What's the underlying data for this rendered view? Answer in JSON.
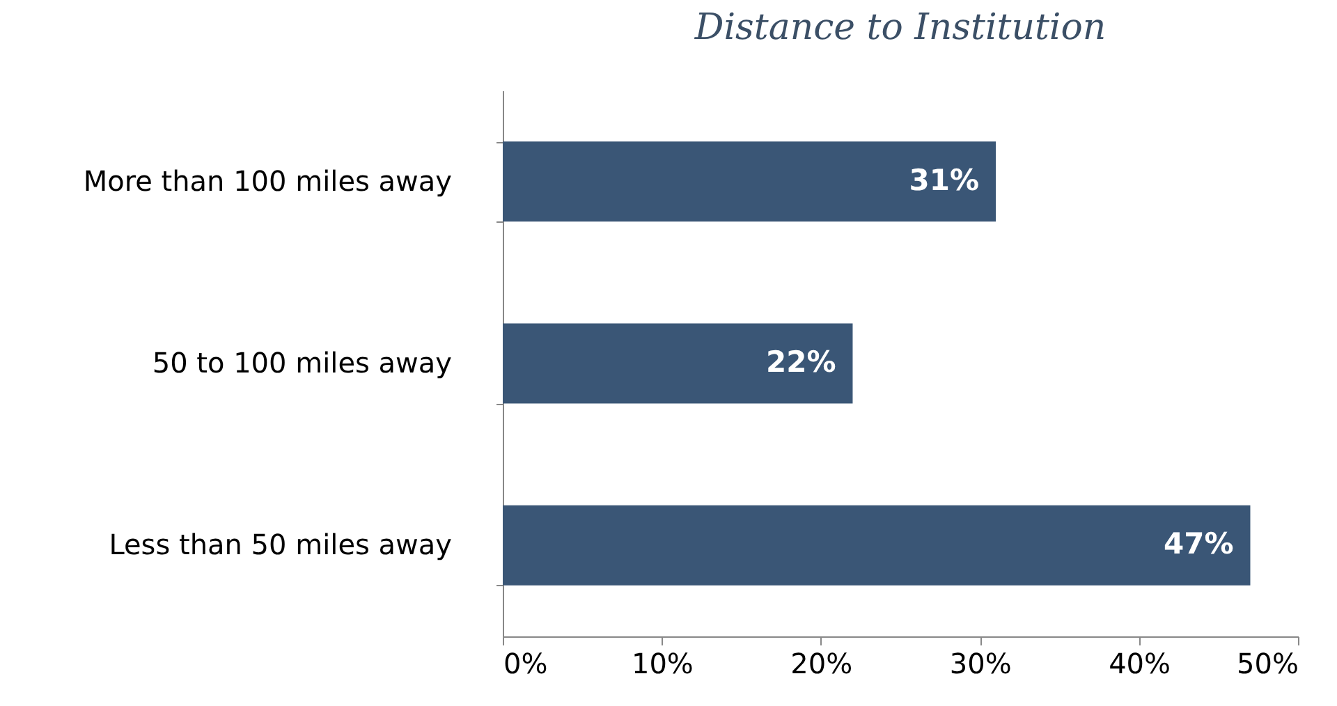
{
  "chart_data": {
    "type": "bar",
    "title": "Distance to Institution",
    "orientation": "horizontal",
    "categories": [
      "More than 100 miles away",
      "50 to 100 miles away",
      "Less than 50 miles away"
    ],
    "values": [
      31,
      22,
      47
    ],
    "value_labels": [
      "31%",
      "22%",
      "47%"
    ],
    "color": "#3a5676",
    "xlim": [
      0,
      50
    ],
    "xticks": [
      {
        "value": 0,
        "label": "0%"
      },
      {
        "value": 10,
        "label": "10%"
      },
      {
        "value": 20,
        "label": "20%"
      },
      {
        "value": 30,
        "label": "30%"
      },
      {
        "value": 40,
        "label": "40%"
      },
      {
        "value": 50,
        "label": "50%"
      }
    ]
  }
}
